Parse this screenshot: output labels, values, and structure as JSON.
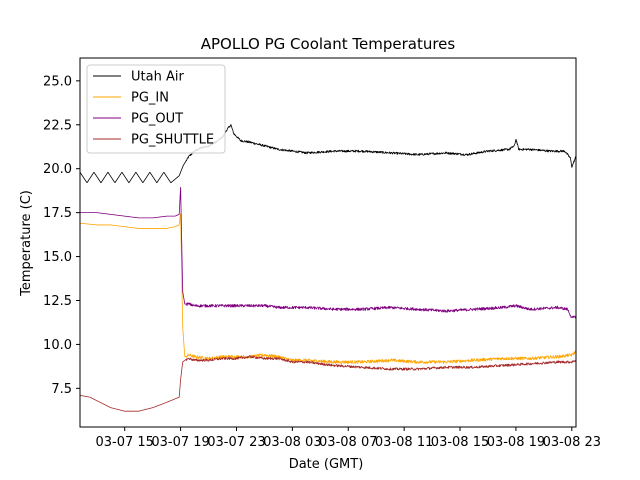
{
  "chart_data": {
    "type": "line",
    "title": "APOLLO PG Coolant Temperatures",
    "xlabel": "Date (GMT)",
    "ylabel": "Temperature (C)",
    "xlim_hours": [
      11.8,
      47.3
    ],
    "ylim": [
      5.3,
      26.3
    ],
    "x_ticks": [
      {
        "hour": 15,
        "label": "03-07 15"
      },
      {
        "hour": 19,
        "label": "03-07 19"
      },
      {
        "hour": 23,
        "label": "03-07 23"
      },
      {
        "hour": 27,
        "label": "03-08 03"
      },
      {
        "hour": 31,
        "label": "03-08 07"
      },
      {
        "hour": 35,
        "label": "03-08 11"
      },
      {
        "hour": 39,
        "label": "03-08 15"
      },
      {
        "hour": 43,
        "label": "03-08 19"
      },
      {
        "hour": 47,
        "label": "03-08 23"
      }
    ],
    "y_ticks": [
      7.5,
      10.0,
      12.5,
      15.0,
      17.5,
      20.0,
      22.5,
      25.0
    ],
    "legend_position": "upper-left",
    "series": [
      {
        "name": "Utah Air",
        "color": "#000000",
        "x": [
          11.8,
          12.3,
          12.8,
          13.3,
          13.8,
          14.3,
          14.8,
          15.3,
          15.8,
          16.3,
          16.8,
          17.3,
          17.8,
          18.3,
          18.9,
          19.2,
          19.6,
          20.0,
          20.5,
          21.0,
          21.5,
          22.0,
          22.3,
          22.6,
          22.8,
          23.3,
          24.0,
          25.0,
          26.0,
          27.0,
          28.0,
          30.0,
          32.0,
          34.0,
          36.0,
          38.0,
          39.5,
          41.0,
          42.5,
          42.9,
          43.0,
          43.2,
          44.0,
          45.5,
          46.5,
          46.9,
          47.0,
          47.3
        ],
        "y": [
          19.8,
          19.2,
          19.8,
          19.2,
          19.8,
          19.2,
          19.8,
          19.2,
          19.8,
          19.2,
          19.8,
          19.2,
          19.8,
          19.2,
          19.6,
          20.2,
          20.7,
          21.0,
          21.2,
          21.3,
          21.5,
          21.8,
          22.2,
          22.5,
          22.0,
          21.6,
          21.5,
          21.3,
          21.1,
          21.0,
          20.9,
          21.0,
          21.0,
          20.9,
          20.8,
          20.9,
          20.8,
          21.0,
          21.1,
          21.3,
          21.7,
          21.1,
          21.1,
          21.0,
          21.0,
          20.6,
          20.1,
          20.7
        ]
      },
      {
        "name": "PG_IN",
        "color": "#ffa500",
        "x": [
          11.8,
          13.0,
          14.0,
          15.0,
          16.0,
          17.0,
          18.0,
          18.6,
          18.9,
          19.0,
          19.15,
          19.3,
          19.6,
          20.0,
          21.0,
          22.0,
          23.0,
          24.0,
          25.0,
          26.0,
          27.0,
          28.0,
          30.0,
          32.0,
          34.0,
          36.0,
          38.0,
          40.0,
          42.0,
          44.0,
          46.0,
          47.0,
          47.3
        ],
        "y": [
          16.9,
          16.8,
          16.8,
          16.7,
          16.6,
          16.6,
          16.6,
          16.7,
          16.8,
          17.5,
          11.0,
          9.3,
          9.4,
          9.3,
          9.2,
          9.3,
          9.3,
          9.3,
          9.4,
          9.3,
          9.1,
          9.1,
          9.0,
          9.0,
          9.1,
          9.0,
          9.0,
          9.1,
          9.2,
          9.2,
          9.3,
          9.4,
          9.6
        ]
      },
      {
        "name": "PG_OUT",
        "color": "#800080",
        "x": [
          11.8,
          13.0,
          14.0,
          15.0,
          16.0,
          17.0,
          18.0,
          18.6,
          18.9,
          19.0,
          19.15,
          19.3,
          19.6,
          20.0,
          21.0,
          22.0,
          23.0,
          24.0,
          25.0,
          26.0,
          28.0,
          30.0,
          32.0,
          34.0,
          36.0,
          38.0,
          40.0,
          42.0,
          43.0,
          44.0,
          46.0,
          46.7,
          47.0,
          47.3
        ],
        "y": [
          17.5,
          17.5,
          17.4,
          17.3,
          17.2,
          17.2,
          17.3,
          17.3,
          17.4,
          19.0,
          13.0,
          12.3,
          12.3,
          12.2,
          12.2,
          12.2,
          12.2,
          12.2,
          12.2,
          12.1,
          12.1,
          12.0,
          12.0,
          12.1,
          12.0,
          11.9,
          12.0,
          12.1,
          12.2,
          12.0,
          12.1,
          12.0,
          11.5,
          11.6
        ]
      },
      {
        "name": "PG_SHUTTLE",
        "color": "#a52a2a",
        "x": [
          11.8,
          12.5,
          13.0,
          14.0,
          15.0,
          16.0,
          17.0,
          18.0,
          18.6,
          18.9,
          19.0,
          19.15,
          19.3,
          19.6,
          20.0,
          21.0,
          22.0,
          23.0,
          24.0,
          25.0,
          26.0,
          27.0,
          28.0,
          30.0,
          32.0,
          34.0,
          36.0,
          38.0,
          40.0,
          42.0,
          44.0,
          46.0,
          47.0,
          47.3
        ],
        "y": [
          7.1,
          7.0,
          6.8,
          6.4,
          6.2,
          6.2,
          6.4,
          6.7,
          6.9,
          7.0,
          8.0,
          9.0,
          9.1,
          9.2,
          9.1,
          9.1,
          9.2,
          9.2,
          9.3,
          9.2,
          9.2,
          9.0,
          9.0,
          8.8,
          8.7,
          8.6,
          8.6,
          8.7,
          8.7,
          8.8,
          8.9,
          9.0,
          9.0,
          9.1
        ]
      }
    ]
  }
}
